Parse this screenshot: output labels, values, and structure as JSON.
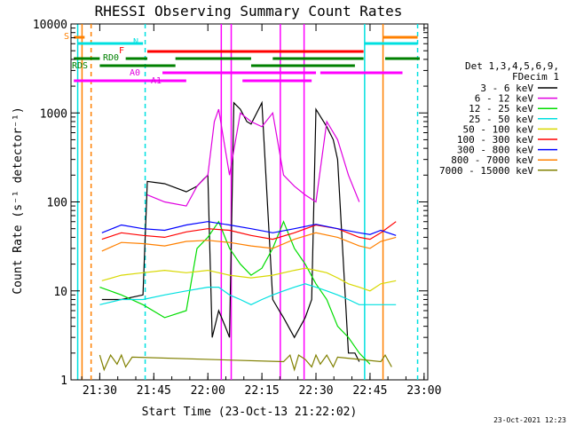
{
  "chart_data": {
    "type": "line",
    "title": "RHESSI Observing Summary Count Rates",
    "xlabel": "Start Time (23-Oct-13 21:22:02)",
    "ylabel": "Count Rate (s⁻¹ detector⁻¹)",
    "xlim_min": [
      21.367,
      23.017
    ],
    "ylim": [
      1,
      10000
    ],
    "yscale": "log",
    "x_ticks": [
      "21:30",
      "21:45",
      "22:00",
      "22:15",
      "22:30",
      "22:45",
      "23:00"
    ],
    "x_tick_values_min": [
      21.5,
      21.75,
      22.0,
      22.25,
      22.5,
      22.75,
      23.0
    ],
    "y_ticks": [
      "1",
      "10",
      "100",
      "1000",
      "10000"
    ],
    "y_tick_values": [
      1,
      10,
      100,
      1000,
      10000
    ],
    "legend_header": [
      "Det 1,3,4,5,6,9,",
      "FDecim 1"
    ],
    "legend_position": "right",
    "series": [
      {
        "name": "3 - 6 keV",
        "color": "#000000",
        "x": [
          21.51,
          21.6,
          21.7,
          21.72,
          21.8,
          21.9,
          21.95,
          21.98,
          22.0,
          22.02,
          22.05,
          22.08,
          22.1,
          22.12,
          22.15,
          22.18,
          22.2,
          22.25,
          22.3,
          22.33,
          22.35,
          22.4,
          22.45,
          22.48,
          22.5,
          22.55,
          22.58,
          22.6,
          22.65,
          22.68,
          22.7
        ],
        "values": [
          8,
          8,
          9,
          170,
          160,
          130,
          150,
          180,
          200,
          3,
          6,
          4,
          3,
          1300,
          1100,
          800,
          750,
          1300,
          8,
          6,
          5,
          3,
          5,
          8,
          1100,
          700,
          500,
          300,
          2,
          2,
          1.6
        ]
      },
      {
        "name": "6 - 12 keV",
        "color": "#e000e0",
        "x": [
          21.72,
          21.8,
          21.9,
          21.95,
          22.0,
          22.03,
          22.05,
          22.1,
          22.15,
          22.2,
          22.25,
          22.3,
          22.35,
          22.4,
          22.45,
          22.5,
          22.55,
          22.6,
          22.65,
          22.7
        ],
        "values": [
          120,
          100,
          90,
          150,
          200,
          800,
          1100,
          200,
          1000,
          800,
          700,
          1000,
          200,
          150,
          120,
          100,
          800,
          500,
          200,
          100
        ]
      },
      {
        "name": "12 - 25 keV",
        "color": "#00dd00",
        "x": [
          21.5,
          21.6,
          21.7,
          21.8,
          21.9,
          21.95,
          22.0,
          22.05,
          22.1,
          22.15,
          22.2,
          22.25,
          22.3,
          22.35,
          22.4,
          22.45,
          22.5,
          22.55,
          22.6,
          22.65,
          22.7,
          22.75
        ],
        "values": [
          11,
          9,
          7,
          5,
          6,
          30,
          40,
          60,
          30,
          20,
          15,
          18,
          30,
          60,
          30,
          20,
          12,
          8,
          4,
          3,
          2,
          1.5
        ]
      },
      {
        "name": "25 - 50 keV",
        "color": "#00e0e0",
        "x": [
          21.5,
          21.6,
          21.7,
          21.8,
          21.9,
          22.0,
          22.05,
          22.1,
          22.15,
          22.2,
          22.25,
          22.3,
          22.35,
          22.4,
          22.45,
          22.5,
          22.55,
          22.6,
          22.65,
          22.7,
          22.75,
          22.8,
          22.87
        ],
        "values": [
          7,
          8,
          8,
          9,
          10,
          11,
          11,
          9,
          8,
          7,
          8,
          9,
          10,
          11,
          12,
          11,
          10,
          9,
          8,
          7,
          7,
          7,
          7
        ]
      },
      {
        "name": "50 - 100 keV",
        "color": "#d8d800",
        "x": [
          21.51,
          21.6,
          21.7,
          21.8,
          21.9,
          22.0,
          22.1,
          22.2,
          22.3,
          22.4,
          22.45,
          22.5,
          22.55,
          22.6,
          22.65,
          22.7,
          22.75,
          22.8,
          22.87
        ],
        "values": [
          13,
          15,
          16,
          17,
          16,
          17,
          15,
          14,
          15,
          17,
          18,
          17,
          16,
          14,
          12,
          11,
          10,
          12,
          13
        ]
      },
      {
        "name": "100 - 300 keV",
        "color": "#ff0000",
        "x": [
          21.51,
          21.6,
          21.7,
          21.8,
          21.9,
          22.0,
          22.1,
          22.2,
          22.3,
          22.4,
          22.5,
          22.6,
          22.7,
          22.75,
          22.8,
          22.87
        ],
        "values": [
          38,
          45,
          42,
          40,
          46,
          50,
          48,
          42,
          38,
          45,
          55,
          50,
          40,
          38,
          45,
          60
        ]
      },
      {
        "name": "300 - 800 keV",
        "color": "#0000ff",
        "x": [
          21.51,
          21.6,
          21.7,
          21.8,
          21.9,
          22.0,
          22.1,
          22.2,
          22.3,
          22.4,
          22.5,
          22.6,
          22.7,
          22.75,
          22.8,
          22.87
        ],
        "values": [
          45,
          55,
          50,
          48,
          55,
          60,
          55,
          50,
          45,
          50,
          56,
          50,
          45,
          43,
          48,
          42
        ]
      },
      {
        "name": "800 - 7000 keV",
        "color": "#ff8000",
        "x": [
          21.51,
          21.6,
          21.7,
          21.8,
          21.9,
          22.0,
          22.1,
          22.2,
          22.3,
          22.4,
          22.5,
          22.6,
          22.7,
          22.75,
          22.8,
          22.87
        ],
        "values": [
          28,
          35,
          34,
          32,
          36,
          37,
          35,
          32,
          30,
          38,
          45,
          40,
          32,
          30,
          36,
          40
        ]
      },
      {
        "name": "7000 - 15000 keV",
        "color": "#808000",
        "x": [
          21.5,
          21.52,
          21.55,
          21.58,
          21.6,
          21.62,
          21.65,
          22.35,
          22.38,
          22.4,
          22.42,
          22.45,
          22.48,
          22.5,
          22.52,
          22.55,
          22.58,
          22.6,
          22.8,
          22.82,
          22.85
        ],
        "values": [
          1.9,
          1.3,
          1.9,
          1.5,
          1.9,
          1.4,
          1.8,
          1.6,
          1.9,
          1.3,
          1.9,
          1.7,
          1.4,
          1.9,
          1.5,
          1.9,
          1.4,
          1.8,
          1.6,
          1.9,
          1.4
        ]
      }
    ],
    "attenuator_labels": [
      {
        "text": "S",
        "color": "#ff8000"
      },
      {
        "text": "N",
        "color": "#00e0e0"
      },
      {
        "text": "F",
        "color": "#ff0000"
      },
      {
        "text": "RD0",
        "color": "#008000"
      },
      {
        "text": "RDS",
        "color": "#008000"
      },
      {
        "text": "A0",
        "color": "#e000e0"
      },
      {
        "text": "A1",
        "color": "#e000e0"
      }
    ],
    "grid": false
  },
  "footer_timestamp": "23-Oct-2021 12:23"
}
